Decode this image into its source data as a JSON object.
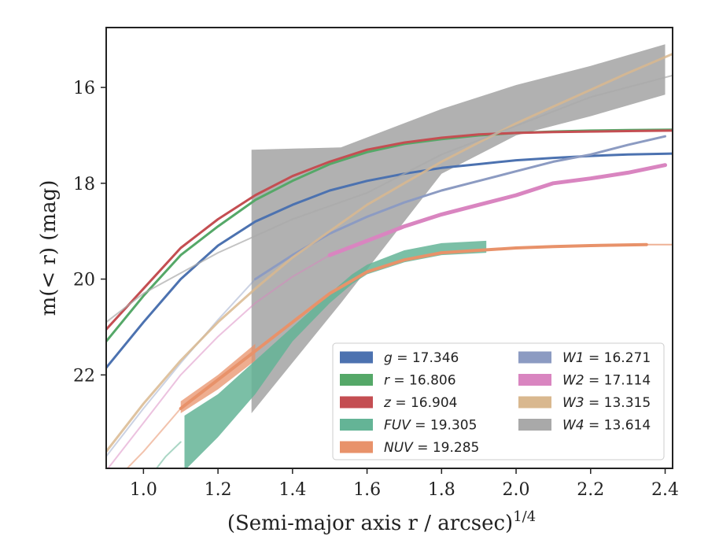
{
  "chart_data": {
    "type": "line",
    "xlabel": "(Semi-major axis r / arcsec)",
    "xlabel_sup": "1/4",
    "ylabel": "m(< r) (mag)",
    "xlim": [
      0.9,
      2.42
    ],
    "ylim": [
      23.95,
      14.75
    ],
    "y_inverted": true,
    "x_ticks": [
      1.0,
      1.2,
      1.4,
      1.6,
      1.8,
      2.0,
      2.2,
      2.4
    ],
    "x_tick_labels": [
      "1.0",
      "1.2",
      "1.4",
      "1.6",
      "1.8",
      "2.0",
      "2.2",
      "2.4"
    ],
    "y_ticks": [
      16,
      18,
      20,
      22
    ],
    "y_tick_labels": [
      "16",
      "18",
      "20",
      "22"
    ],
    "grid": false,
    "legend_placement": "lower-right",
    "legend": [
      {
        "label_sym": "g",
        "label_val": "17.346",
        "color": "#4c72b0"
      },
      {
        "label_sym": "r",
        "label_val": "16.806",
        "color": "#55a868"
      },
      {
        "label_sym": "z",
        "label_val": "16.904",
        "color": "#c44e52"
      },
      {
        "label_sym": "FUV",
        "label_val": "19.305",
        "color": "#64b496"
      },
      {
        "label_sym": "NUV",
        "label_val": "19.285",
        "color": "#e8926a"
      },
      {
        "label_sym": "W1",
        "label_val": "16.271",
        "color": "#8c9bc2"
      },
      {
        "label_sym": "W2",
        "label_val": "17.114",
        "color": "#d985c0"
      },
      {
        "label_sym": "W3",
        "label_val": "13.315",
        "color": "#d9b88f"
      },
      {
        "label_sym": "W4",
        "label_val": "13.614",
        "color": "#a9a9a9"
      }
    ],
    "series": [
      {
        "name": "g",
        "color": "#4c72b0",
        "width": 3,
        "opacity": 1,
        "x": [
          0.9,
          1.0,
          1.1,
          1.2,
          1.3,
          1.4,
          1.5,
          1.6,
          1.7,
          1.8,
          1.9,
          2.0,
          2.1,
          2.2,
          2.3,
          2.42
        ],
        "y": [
          21.85,
          20.9,
          20.0,
          19.3,
          18.8,
          18.45,
          18.15,
          17.95,
          17.8,
          17.68,
          17.6,
          17.52,
          17.47,
          17.43,
          17.4,
          17.38
        ]
      },
      {
        "name": "r",
        "color": "#55a868",
        "width": 3,
        "opacity": 1,
        "x": [
          0.9,
          1.0,
          1.1,
          1.2,
          1.3,
          1.4,
          1.5,
          1.6,
          1.7,
          1.8,
          1.9,
          2.0,
          2.1,
          2.2,
          2.3,
          2.42
        ],
        "y": [
          21.3,
          20.35,
          19.5,
          18.9,
          18.35,
          17.95,
          17.6,
          17.35,
          17.18,
          17.08,
          17.0,
          16.95,
          16.92,
          16.9,
          16.89,
          16.88
        ]
      },
      {
        "name": "z",
        "color": "#c44e52",
        "width": 3,
        "opacity": 1,
        "x": [
          0.9,
          1.0,
          1.1,
          1.2,
          1.3,
          1.4,
          1.5,
          1.6,
          1.7,
          1.8,
          1.9,
          2.0,
          2.1,
          2.2,
          2.3,
          2.42
        ],
        "y": [
          21.05,
          20.2,
          19.35,
          18.75,
          18.25,
          17.85,
          17.55,
          17.3,
          17.15,
          17.05,
          16.98,
          16.95,
          16.93,
          16.92,
          16.91,
          16.9
        ]
      },
      {
        "name": "W1",
        "color": "#8c9bc2",
        "width": 3,
        "opacity": 1,
        "x": [
          1.3,
          1.4,
          1.5,
          1.6,
          1.7,
          1.8,
          1.9,
          2.0,
          2.1,
          2.2,
          2.3,
          2.4
        ],
        "y": [
          20.0,
          19.5,
          19.05,
          18.7,
          18.4,
          18.15,
          17.95,
          17.75,
          17.55,
          17.4,
          17.2,
          17.02
        ]
      },
      {
        "name": "W1-inner",
        "color": "#8c9bc2",
        "width": 2,
        "opacity": 0.45,
        "x": [
          0.9,
          1.0,
          1.1,
          1.2,
          1.3
        ],
        "y": [
          23.7,
          22.7,
          21.75,
          20.85,
          20.0
        ]
      },
      {
        "name": "W2",
        "color": "#d985c0",
        "width": 5,
        "opacity": 1,
        "x": [
          1.5,
          1.6,
          1.7,
          1.8,
          1.9,
          2.0,
          2.1,
          2.2,
          2.3,
          2.4
        ],
        "y": [
          19.5,
          19.2,
          18.9,
          18.65,
          18.45,
          18.25,
          18.0,
          17.9,
          17.78,
          17.62
        ]
      },
      {
        "name": "W2-inner",
        "color": "#d985c0",
        "width": 2,
        "opacity": 0.5,
        "x": [
          0.9,
          1.0,
          1.1,
          1.2,
          1.3,
          1.4,
          1.5
        ],
        "y": [
          24.0,
          23.0,
          22.0,
          21.2,
          20.5,
          19.95,
          19.5
        ]
      },
      {
        "name": "W3",
        "color": "#d9b88f",
        "width": 3,
        "opacity": 0.85,
        "x": [
          0.9,
          1.0,
          1.1,
          1.2,
          1.3,
          1.4,
          1.5,
          1.6,
          1.7,
          1.8,
          1.9,
          2.0,
          2.1,
          2.2,
          2.3,
          2.42
        ],
        "y": [
          23.6,
          22.6,
          21.7,
          20.9,
          20.2,
          19.55,
          19.0,
          18.45,
          18.0,
          17.55,
          17.15,
          16.75,
          16.4,
          16.05,
          15.7,
          15.3
        ]
      },
      {
        "name": "W4",
        "color": "#a9a9a9",
        "width": 2,
        "opacity": 0.7,
        "x": [
          0.9,
          1.0,
          1.2,
          1.4,
          1.6,
          1.8,
          2.0,
          2.2,
          2.42
        ],
        "y": [
          20.9,
          20.3,
          19.45,
          18.75,
          18.2,
          17.4,
          16.8,
          16.2,
          15.75
        ]
      },
      {
        "name": "NUV",
        "color": "#e8926a",
        "width": 4,
        "opacity": 1,
        "x": [
          1.1,
          1.2,
          1.3,
          1.4,
          1.5,
          1.6,
          1.7,
          1.8,
          1.9,
          2.0,
          2.1,
          2.2,
          2.35
        ],
        "y": [
          22.7,
          22.1,
          21.5,
          20.9,
          20.3,
          19.85,
          19.6,
          19.45,
          19.4,
          19.35,
          19.32,
          19.3,
          19.28
        ]
      },
      {
        "name": "NUV-tail",
        "color": "#e8926a",
        "width": 2,
        "opacity": 0.7,
        "x": [
          2.35,
          2.42
        ],
        "y": [
          19.28,
          19.28
        ]
      },
      {
        "name": "NUV-inner",
        "color": "#e8926a",
        "width": 2,
        "opacity": 0.55,
        "x": [
          0.95,
          1.0,
          1.05,
          1.1
        ],
        "y": [
          24.0,
          23.6,
          23.15,
          22.7
        ]
      },
      {
        "name": "FUV-inner",
        "color": "#64b496",
        "width": 2,
        "opacity": 0.55,
        "x": [
          1.03,
          1.06,
          1.1
        ],
        "y": [
          24.0,
          23.7,
          23.4
        ]
      }
    ],
    "bands": [
      {
        "name": "W4",
        "color": "#a9a9a9",
        "opacity": 0.9,
        "x": [
          1.29,
          1.53,
          1.8,
          2.0,
          2.2,
          2.4
        ],
        "y_low": [
          22.8,
          20.5,
          17.8,
          17.0,
          16.6,
          16.15
        ],
        "y_high": [
          17.3,
          17.25,
          16.45,
          15.95,
          15.55,
          15.1
        ]
      },
      {
        "name": "FUV",
        "color": "#64b496",
        "opacity": 0.85,
        "x": [
          1.11,
          1.2,
          1.3,
          1.4,
          1.5,
          1.56,
          1.6,
          1.7,
          1.8,
          1.92
        ],
        "y_low": [
          24.0,
          23.3,
          22.4,
          21.3,
          20.5,
          20.1,
          19.9,
          19.65,
          19.5,
          19.45
        ],
        "y_high": [
          22.85,
          22.4,
          21.7,
          21.0,
          20.3,
          19.9,
          19.7,
          19.4,
          19.25,
          19.2
        ]
      },
      {
        "name": "NUV",
        "color": "#e8926a",
        "opacity": 0.75,
        "x": [
          1.1,
          1.2,
          1.3
        ],
        "y_low": [
          22.8,
          22.3,
          21.7
        ],
        "y_high": [
          22.55,
          22.0,
          21.35
        ]
      }
    ]
  }
}
